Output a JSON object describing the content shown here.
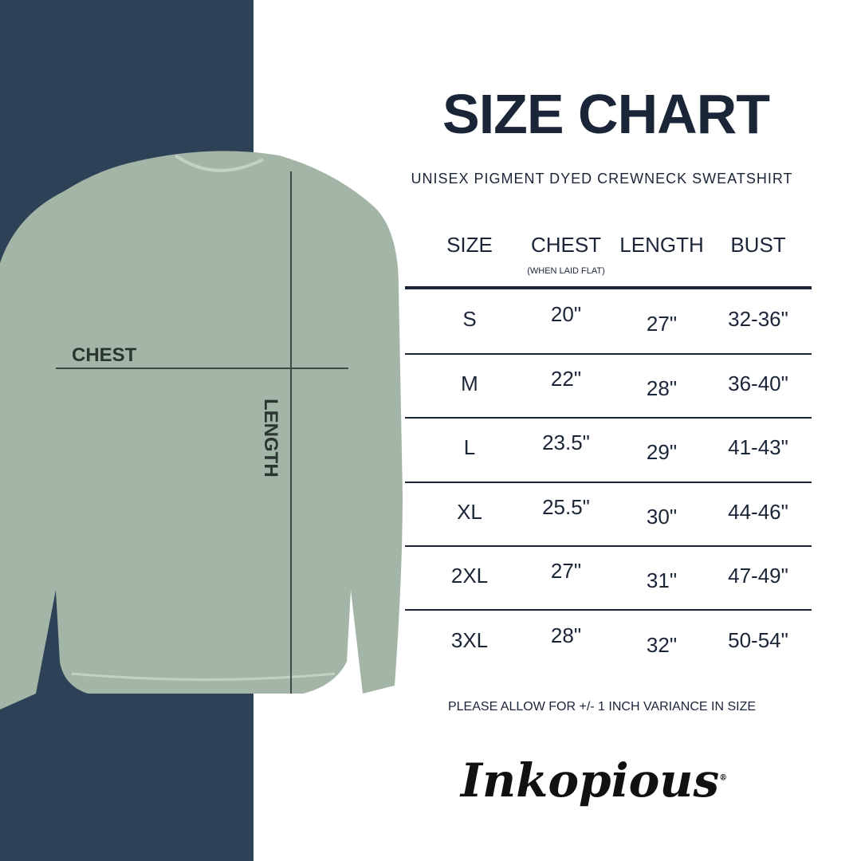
{
  "title": "SIZE CHART",
  "subtitle": "UNISEX PIGMENT DYED CREWNECK SWEATSHIRT",
  "diagram": {
    "chest_label": "CHEST",
    "length_label": "LENGTH",
    "shirt_color": "#a3b5a6",
    "panel_color": "#2e4257"
  },
  "table": {
    "headers": [
      "SIZE",
      "CHEST",
      "LENGTH",
      "BUST"
    ],
    "chest_note": "(WHEN LAID FLAT)",
    "rows": [
      [
        "S",
        "20\"",
        "27\"",
        "32-36\""
      ],
      [
        "M",
        "22\"",
        "28\"",
        "36-40\""
      ],
      [
        "L",
        "23.5\"",
        "29\"",
        "41-43\""
      ],
      [
        "XL",
        "25.5\"",
        "30\"",
        "44-46\""
      ],
      [
        "2XL",
        "27\"",
        "31\"",
        "47-49\""
      ],
      [
        "3XL",
        "28\"",
        "32\"",
        "50-54\""
      ]
    ]
  },
  "note": "PLEASE ALLOW FOR +/- 1 INCH VARIANCE IN SIZE",
  "logo": "Inkopious"
}
